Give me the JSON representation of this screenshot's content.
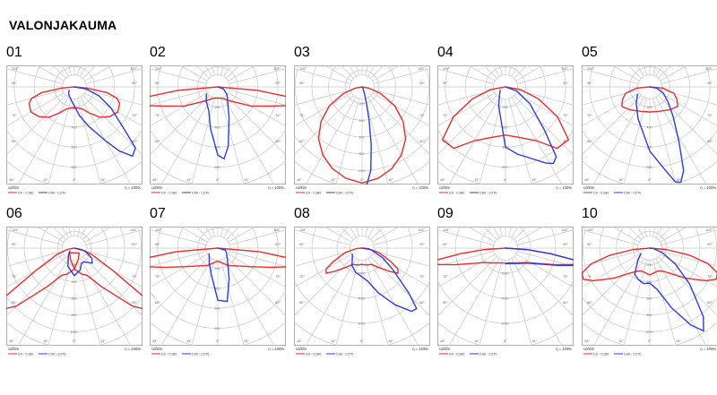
{
  "page": {
    "title": "VALONJAKAUMA"
  },
  "colors": {
    "c0_c180": "#ee2b2b",
    "c90_c270": "#2b3bee",
    "grid": "#c8c8c8",
    "frame": "#9a9a9a"
  },
  "common": {
    "unit_label": "cd/klm",
    "legend": {
      "red": "C0 - C180",
      "blue": "C90 - C270"
    },
    "eta": "η = 100%",
    "angle_labels": [
      "105°",
      "90°",
      "75°",
      "60°",
      "45°",
      "30°",
      "15°",
      "0°",
      "15°",
      "30°",
      "45°",
      "60°",
      "75°",
      "90°",
      "105°"
    ]
  },
  "chart_data": [
    {
      "number": "01",
      "type": "polar",
      "rings": [
        "200",
        "400",
        "600",
        "800",
        "1000"
      ],
      "red": [
        [
          0,
          210
        ],
        [
          10,
          215
        ],
        [
          20,
          235
        ],
        [
          30,
          300
        ],
        [
          40,
          395
        ],
        [
          50,
          460
        ],
        [
          60,
          500
        ],
        [
          70,
          480
        ],
        [
          75,
          440
        ],
        [
          80,
          330
        ],
        [
          85,
          120
        ],
        [
          90,
          0
        ]
      ],
      "blue": [
        [
          -60,
          60
        ],
        [
          -40,
          90
        ],
        [
          -20,
          120
        ],
        [
          0,
          190
        ],
        [
          10,
          290
        ],
        [
          20,
          420
        ],
        [
          30,
          620
        ],
        [
          35,
          780
        ],
        [
          40,
          900
        ],
        [
          45,
          860
        ],
        [
          50,
          640
        ],
        [
          60,
          420
        ],
        [
          70,
          260
        ],
        [
          80,
          120
        ],
        [
          90,
          0
        ]
      ]
    },
    {
      "number": "02",
      "type": "polar",
      "rings": [
        "200",
        "400",
        "600",
        "800",
        "1000"
      ],
      "red": [
        [
          0,
          110
        ],
        [
          20,
          120
        ],
        [
          40,
          180
        ],
        [
          60,
          380
        ],
        [
          70,
          560
        ],
        [
          75,
          720
        ],
        [
          78,
          880
        ],
        [
          80,
          880
        ],
        [
          82,
          700
        ],
        [
          85,
          400
        ],
        [
          90,
          0
        ]
      ],
      "blue": [
        [
          -60,
          130
        ],
        [
          -40,
          180
        ],
        [
          -20,
          260
        ],
        [
          -10,
          420
        ],
        [
          0,
          680
        ],
        [
          5,
          720
        ],
        [
          10,
          600
        ],
        [
          20,
          330
        ],
        [
          30,
          200
        ],
        [
          50,
          120
        ],
        [
          70,
          60
        ],
        [
          90,
          0
        ]
      ]
    },
    {
      "number": "03",
      "type": "polar",
      "rings": [
        "200",
        "400",
        "600",
        "800",
        "1000",
        "1200"
      ],
      "red": [
        [
          0,
          1150
        ],
        [
          10,
          1110
        ],
        [
          20,
          1040
        ],
        [
          30,
          940
        ],
        [
          40,
          810
        ],
        [
          50,
          640
        ],
        [
          60,
          450
        ],
        [
          70,
          240
        ],
        [
          80,
          80
        ],
        [
          90,
          0
        ]
      ],
      "blue": [
        [
          0,
          1200
        ],
        [
          3,
          1160
        ],
        [
          6,
          1000
        ],
        [
          9,
          700
        ],
        [
          12,
          400
        ],
        [
          15,
          200
        ],
        [
          20,
          80
        ],
        [
          30,
          20
        ],
        [
          50,
          0
        ]
      ]
    },
    {
      "number": "04",
      "type": "polar",
      "rings": [
        "200",
        "400",
        "600",
        "800",
        "1000"
      ],
      "red": [
        [
          0,
          480
        ],
        [
          15,
          520
        ],
        [
          30,
          620
        ],
        [
          40,
          800
        ],
        [
          50,
          820
        ],
        [
          60,
          600
        ],
        [
          70,
          350
        ],
        [
          80,
          150
        ],
        [
          90,
          0
        ]
      ],
      "blue": [
        [
          -60,
          60
        ],
        [
          -40,
          90
        ],
        [
          -20,
          200
        ],
        [
          0,
          600
        ],
        [
          10,
          680
        ],
        [
          20,
          760
        ],
        [
          28,
          860
        ],
        [
          32,
          900
        ],
        [
          36,
          860
        ],
        [
          42,
          580
        ],
        [
          55,
          300
        ],
        [
          70,
          120
        ],
        [
          90,
          0
        ]
      ]
    },
    {
      "number": "05",
      "type": "polar",
      "rings": [
        "200",
        "400",
        "600",
        "800",
        "1000"
      ],
      "red": [
        [
          0,
          250
        ],
        [
          20,
          260
        ],
        [
          40,
          300
        ],
        [
          55,
          340
        ],
        [
          65,
          300
        ],
        [
          75,
          250
        ],
        [
          85,
          130
        ],
        [
          90,
          0
        ]
      ],
      "blue": [
        [
          -60,
          140
        ],
        [
          -40,
          210
        ],
        [
          -20,
          340
        ],
        [
          0,
          640
        ],
        [
          10,
          830
        ],
        [
          15,
          980
        ],
        [
          18,
          1000
        ],
        [
          22,
          900
        ],
        [
          28,
          620
        ],
        [
          38,
          380
        ],
        [
          50,
          240
        ],
        [
          65,
          150
        ],
        [
          80,
          70
        ],
        [
          90,
          0
        ]
      ]
    },
    {
      "number": "06",
      "type": "polar",
      "rings": [
        "200",
        "400",
        "600",
        "800",
        "1000",
        "1200"
      ],
      "red": [
        [
          -45,
          80
        ],
        [
          -20,
          140
        ],
        [
          0,
          250
        ],
        [
          15,
          320
        ],
        [
          25,
          360
        ],
        [
          35,
          560
        ],
        [
          45,
          980
        ],
        [
          50,
          1150
        ],
        [
          55,
          1000
        ],
        [
          60,
          520
        ],
        [
          70,
          220
        ],
        [
          80,
          80
        ],
        [
          90,
          0
        ]
      ],
      "blue": [
        [
          -60,
          60
        ],
        [
          -40,
          110
        ],
        [
          -20,
          230
        ],
        [
          0,
          330
        ],
        [
          15,
          270
        ],
        [
          25,
          200
        ],
        [
          35,
          200
        ],
        [
          50,
          280
        ],
        [
          60,
          240
        ],
        [
          75,
          130
        ],
        [
          90,
          0
        ]
      ]
    },
    {
      "number": "07",
      "type": "polar",
      "rings": [
        "200",
        "400",
        "600",
        "800",
        "1000"
      ],
      "red": [
        [
          0,
          130
        ],
        [
          15,
          150
        ],
        [
          30,
          200
        ],
        [
          45,
          250
        ],
        [
          60,
          370
        ],
        [
          70,
          560
        ],
        [
          75,
          720
        ],
        [
          78,
          850
        ],
        [
          80,
          850
        ],
        [
          82,
          720
        ],
        [
          85,
          420
        ],
        [
          90,
          0
        ]
      ],
      "blue": [
        [
          -60,
          100
        ],
        [
          -45,
          120
        ],
        [
          -30,
          170
        ],
        [
          -15,
          260
        ],
        [
          0,
          520
        ],
        [
          10,
          540
        ],
        [
          20,
          330
        ],
        [
          40,
          150
        ],
        [
          60,
          100
        ],
        [
          75,
          80
        ],
        [
          90,
          0
        ]
      ]
    },
    {
      "number": "08",
      "type": "polar",
      "rings": [
        "2000",
        "4000",
        "6000",
        "8000"
      ],
      "red": [
        [
          0,
          1300
        ],
        [
          15,
          1400
        ],
        [
          30,
          1500
        ],
        [
          40,
          2000
        ],
        [
          50,
          2900
        ],
        [
          55,
          3500
        ],
        [
          60,
          3300
        ],
        [
          65,
          2500
        ],
        [
          75,
          1400
        ],
        [
          85,
          500
        ],
        [
          90,
          0
        ]
      ],
      "blue": [
        [
          -60,
          900
        ],
        [
          -45,
          1100
        ],
        [
          -30,
          1600
        ],
        [
          -15,
          2000
        ],
        [
          0,
          2300
        ],
        [
          10,
          2700
        ],
        [
          20,
          3800
        ],
        [
          30,
          5200
        ],
        [
          38,
          6400
        ],
        [
          42,
          6500
        ],
        [
          46,
          5200
        ],
        [
          55,
          3000
        ],
        [
          65,
          1800
        ],
        [
          80,
          700
        ],
        [
          90,
          0
        ]
      ]
    },
    {
      "number": "09",
      "type": "polar",
      "rings": [
        "2000",
        "4000",
        "6000",
        "8000"
      ],
      "red": [
        [
          0,
          1200
        ],
        [
          20,
          1250
        ],
        [
          40,
          1550
        ],
        [
          55,
          2000
        ],
        [
          65,
          2900
        ],
        [
          72,
          4300
        ],
        [
          76,
          5400
        ],
        [
          78,
          6000
        ],
        [
          80,
          5700
        ],
        [
          83,
          3600
        ],
        [
          86,
          1800
        ],
        [
          90,
          0
        ]
      ],
      "blue": [
        [
          0,
          1250
        ],
        [
          20,
          1300
        ],
        [
          40,
          1600
        ],
        [
          55,
          2100
        ],
        [
          65,
          3000
        ],
        [
          72,
          4500
        ],
        [
          76,
          5700
        ],
        [
          78,
          6100
        ],
        [
          80,
          5800
        ],
        [
          83,
          3600
        ],
        [
          86,
          1800
        ],
        [
          90,
          0
        ]
      ]
    },
    {
      "number": "10",
      "type": "polar",
      "rings": [
        "200",
        "400",
        "600",
        "800",
        "1000",
        "1200"
      ],
      "red": [
        [
          0,
          320
        ],
        [
          10,
          300
        ],
        [
          20,
          290
        ],
        [
          30,
          320
        ],
        [
          40,
          400
        ],
        [
          50,
          560
        ],
        [
          60,
          780
        ],
        [
          65,
          880
        ],
        [
          70,
          860
        ],
        [
          75,
          720
        ],
        [
          80,
          480
        ],
        [
          85,
          200
        ],
        [
          90,
          0
        ]
      ],
      "blue": [
        [
          -60,
          120
        ],
        [
          -45,
          200
        ],
        [
          -30,
          360
        ],
        [
          -20,
          400
        ],
        [
          -10,
          430
        ],
        [
          0,
          420
        ],
        [
          10,
          500
        ],
        [
          20,
          760
        ],
        [
          28,
          1040
        ],
        [
          33,
          1180
        ],
        [
          38,
          1040
        ],
        [
          48,
          640
        ],
        [
          58,
          360
        ],
        [
          70,
          160
        ],
        [
          85,
          40
        ],
        [
          90,
          0
        ]
      ]
    }
  ]
}
